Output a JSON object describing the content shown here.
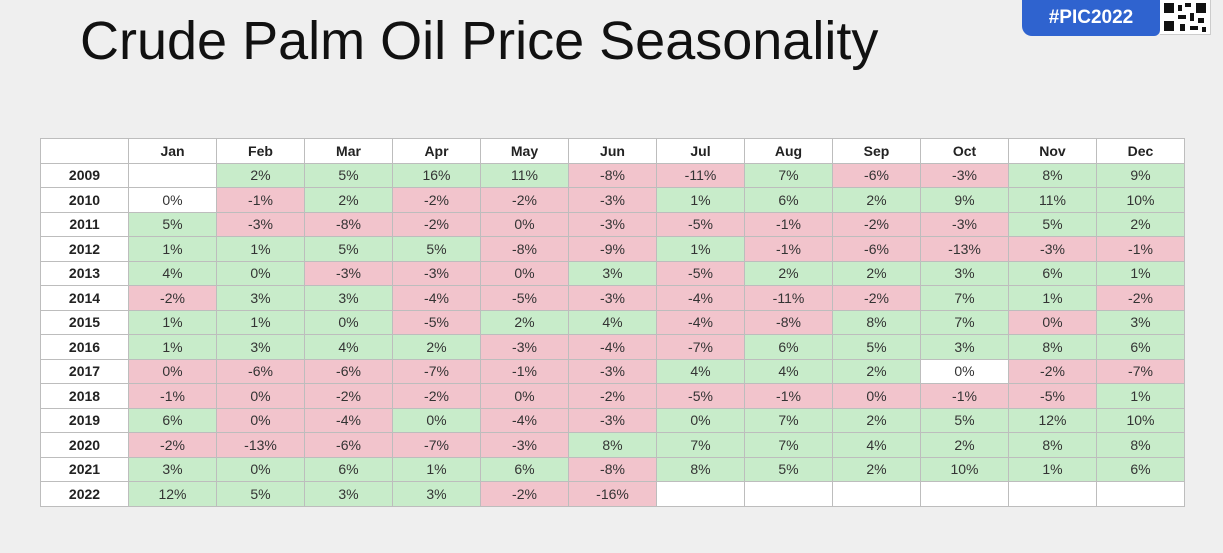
{
  "title": "Crude Palm Oil Price Seasonality",
  "badge": "#PIC2022",
  "colors": {
    "positive": "#c8ecca",
    "negative": "#f2c4cc",
    "badge": "#2f63cf"
  },
  "table": {
    "months": [
      "Jan",
      "Feb",
      "Mar",
      "Apr",
      "May",
      "Jun",
      "Jul",
      "Aug",
      "Sep",
      "Oct",
      "Nov",
      "Dec"
    ],
    "rows": [
      {
        "year": "2009",
        "values": [
          "",
          "2%",
          "5%",
          "16%",
          "11%",
          "-8%",
          "-11%",
          "7%",
          "-6%",
          "-3%",
          "8%",
          "9%"
        ]
      },
      {
        "year": "2010",
        "values": [
          "0%",
          "-1%",
          "2%",
          "-2%",
          "-2%",
          "-3%",
          "1%",
          "6%",
          "2%",
          "9%",
          "11%",
          "10%"
        ]
      },
      {
        "year": "2011",
        "values": [
          "5%",
          "-3%",
          "-8%",
          "-2%",
          "0%",
          "-3%",
          "-5%",
          "-1%",
          "-2%",
          "-3%",
          "5%",
          "2%"
        ]
      },
      {
        "year": "2012",
        "values": [
          "1%",
          "1%",
          "5%",
          "5%",
          "-8%",
          "-9%",
          "1%",
          "-1%",
          "-6%",
          "-13%",
          "-3%",
          "-1%"
        ]
      },
      {
        "year": "2013",
        "values": [
          "4%",
          "0%",
          "-3%",
          "-3%",
          "0%",
          "3%",
          "-5%",
          "2%",
          "2%",
          "3%",
          "6%",
          "1%"
        ]
      },
      {
        "year": "2014",
        "values": [
          "-2%",
          "3%",
          "3%",
          "-4%",
          "-5%",
          "-3%",
          "-4%",
          "-11%",
          "-2%",
          "7%",
          "1%",
          "-2%"
        ]
      },
      {
        "year": "2015",
        "values": [
          "1%",
          "1%",
          "0%",
          "-5%",
          "2%",
          "4%",
          "-4%",
          "-8%",
          "8%",
          "7%",
          "0%",
          "3%"
        ]
      },
      {
        "year": "2016",
        "values": [
          "1%",
          "3%",
          "4%",
          "2%",
          "-3%",
          "-4%",
          "-7%",
          "6%",
          "5%",
          "3%",
          "8%",
          "6%"
        ]
      },
      {
        "year": "2017",
        "values": [
          "0%",
          "-6%",
          "-6%",
          "-7%",
          "-1%",
          "-3%",
          "4%",
          "4%",
          "2%",
          "0%",
          "-2%",
          "-7%"
        ]
      },
      {
        "year": "2018",
        "values": [
          "-1%",
          "0%",
          "-2%",
          "-2%",
          "0%",
          "-2%",
          "-5%",
          "-1%",
          "0%",
          "-1%",
          "-5%",
          "1%"
        ]
      },
      {
        "year": "2019",
        "values": [
          "6%",
          "0%",
          "-4%",
          "0%",
          "-4%",
          "-3%",
          "0%",
          "7%",
          "2%",
          "5%",
          "12%",
          "10%"
        ]
      },
      {
        "year": "2020",
        "values": [
          "-2%",
          "-13%",
          "-6%",
          "-7%",
          "-3%",
          "8%",
          "7%",
          "7%",
          "4%",
          "2%",
          "8%",
          "8%"
        ]
      },
      {
        "year": "2021",
        "values": [
          "3%",
          "0%",
          "6%",
          "1%",
          "6%",
          "-8%",
          "8%",
          "5%",
          "2%",
          "10%",
          "1%",
          "6%"
        ]
      },
      {
        "year": "2022",
        "values": [
          "12%",
          "5%",
          "3%",
          "3%",
          "-2%",
          "-16%",
          "",
          "",
          "",
          "",
          "",
          ""
        ]
      }
    ],
    "cell_colors": [
      [
        "blank",
        "pos",
        "pos",
        "pos",
        "pos",
        "neg",
        "neg",
        "pos",
        "neg",
        "neg",
        "pos",
        "pos"
      ],
      [
        "zero",
        "neg",
        "pos",
        "neg",
        "neg",
        "neg",
        "pos",
        "pos",
        "pos",
        "pos",
        "pos",
        "pos"
      ],
      [
        "pos",
        "neg",
        "neg",
        "neg",
        "neg",
        "neg",
        "neg",
        "neg",
        "neg",
        "neg",
        "pos",
        "pos"
      ],
      [
        "pos",
        "pos",
        "pos",
        "pos",
        "neg",
        "neg",
        "pos",
        "neg",
        "neg",
        "neg",
        "neg",
        "neg"
      ],
      [
        "pos",
        "pos",
        "neg",
        "neg",
        "neg",
        "pos",
        "neg",
        "pos",
        "pos",
        "pos",
        "pos",
        "pos"
      ],
      [
        "neg",
        "pos",
        "pos",
        "neg",
        "neg",
        "neg",
        "neg",
        "neg",
        "neg",
        "pos",
        "pos",
        "neg"
      ],
      [
        "pos",
        "pos",
        "pos",
        "neg",
        "pos",
        "pos",
        "neg",
        "neg",
        "pos",
        "pos",
        "neg",
        "pos"
      ],
      [
        "pos",
        "pos",
        "pos",
        "pos",
        "neg",
        "neg",
        "neg",
        "pos",
        "pos",
        "pos",
        "pos",
        "pos"
      ],
      [
        "neg",
        "neg",
        "neg",
        "neg",
        "neg",
        "neg",
        "pos",
        "pos",
        "pos",
        "zero",
        "neg",
        "neg"
      ],
      [
        "neg",
        "neg",
        "neg",
        "neg",
        "neg",
        "neg",
        "neg",
        "neg",
        "neg",
        "neg",
        "neg",
        "pos"
      ],
      [
        "pos",
        "neg",
        "neg",
        "pos",
        "neg",
        "neg",
        "pos",
        "pos",
        "pos",
        "pos",
        "pos",
        "pos"
      ],
      [
        "neg",
        "neg",
        "neg",
        "neg",
        "neg",
        "pos",
        "pos",
        "pos",
        "pos",
        "pos",
        "pos",
        "pos"
      ],
      [
        "pos",
        "pos",
        "pos",
        "pos",
        "pos",
        "neg",
        "pos",
        "pos",
        "pos",
        "pos",
        "pos",
        "pos"
      ],
      [
        "pos",
        "pos",
        "pos",
        "pos",
        "neg",
        "neg",
        "blank",
        "blank",
        "blank",
        "blank",
        "blank",
        "blank"
      ]
    ]
  }
}
